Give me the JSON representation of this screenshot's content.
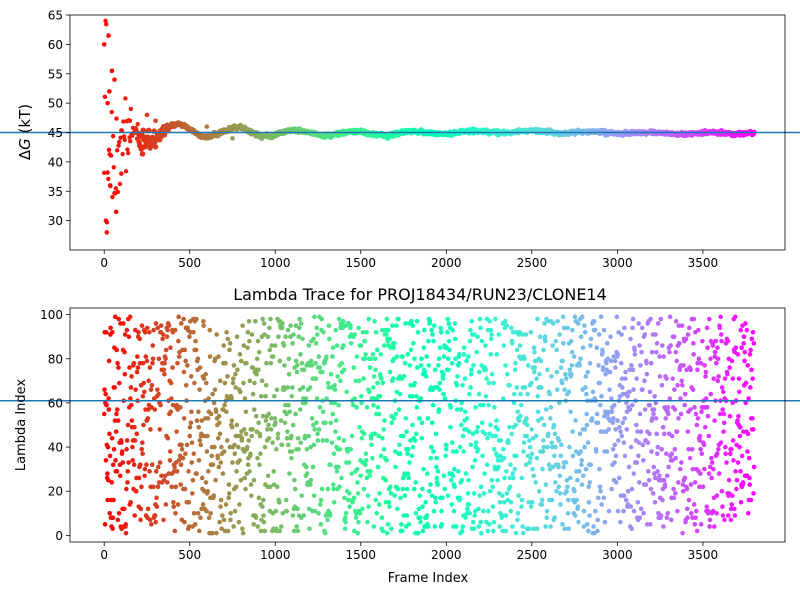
{
  "chart_data": [
    {
      "type": "scatter",
      "title": "",
      "xlabel": "",
      "ylabel": "ΔG (kT)",
      "xlim": [
        -200,
        3980
      ],
      "ylim": [
        25,
        65
      ],
      "xticks": [
        0,
        500,
        1000,
        1500,
        2000,
        2500,
        3000,
        3500
      ],
      "yticks": [
        30,
        35,
        40,
        45,
        50,
        55,
        60,
        65
      ],
      "hline": 45,
      "hline_color": "#1f77b4",
      "colormap": "rainbow",
      "n_frames": 3800,
      "series_description": "Running free-energy estimate per frame; scattered 28–62 for first ~150 frames, then converging to ~45",
      "points_sample": [
        {
          "x": 0,
          "y": 60
        },
        {
          "x": 10,
          "y": 30
        },
        {
          "x": 15,
          "y": 28
        },
        {
          "x": 20,
          "y": 50
        },
        {
          "x": 25,
          "y": 61.5
        },
        {
          "x": 30,
          "y": 52
        },
        {
          "x": 35,
          "y": 36
        },
        {
          "x": 45,
          "y": 55.5
        },
        {
          "x": 60,
          "y": 54
        },
        {
          "x": 70,
          "y": 31.5
        },
        {
          "x": 100,
          "y": 38
        },
        {
          "x": 150,
          "y": 47
        },
        {
          "x": 250,
          "y": 48
        },
        {
          "x": 300,
          "y": 47
        },
        {
          "x": 600,
          "y": 46
        },
        {
          "x": 750,
          "y": 44
        },
        {
          "x": 1250,
          "y": 44.5
        },
        {
          "x": 2300,
          "y": 45.4
        },
        {
          "x": 3800,
          "y": 45.1
        }
      ]
    },
    {
      "type": "scatter",
      "title": "Lambda Trace for PROJ18434/RUN23/CLONE14",
      "xlabel": "Frame Index",
      "ylabel": "Lambda Index",
      "xlim": [
        -200,
        3980
      ],
      "ylim": [
        -3,
        103
      ],
      "xticks": [
        0,
        500,
        1000,
        1500,
        2000,
        2500,
        3000,
        3500
      ],
      "yticks": [
        0,
        20,
        40,
        60,
        80,
        100
      ],
      "hline": 61,
      "hline_color": "#1f77b4",
      "colormap": "rainbow",
      "n_frames": 3800,
      "lambda_range": [
        1,
        99
      ],
      "series_description": "Lambda index per frame, uniformly distributed between 1 and 99, colored by frame index"
    }
  ]
}
